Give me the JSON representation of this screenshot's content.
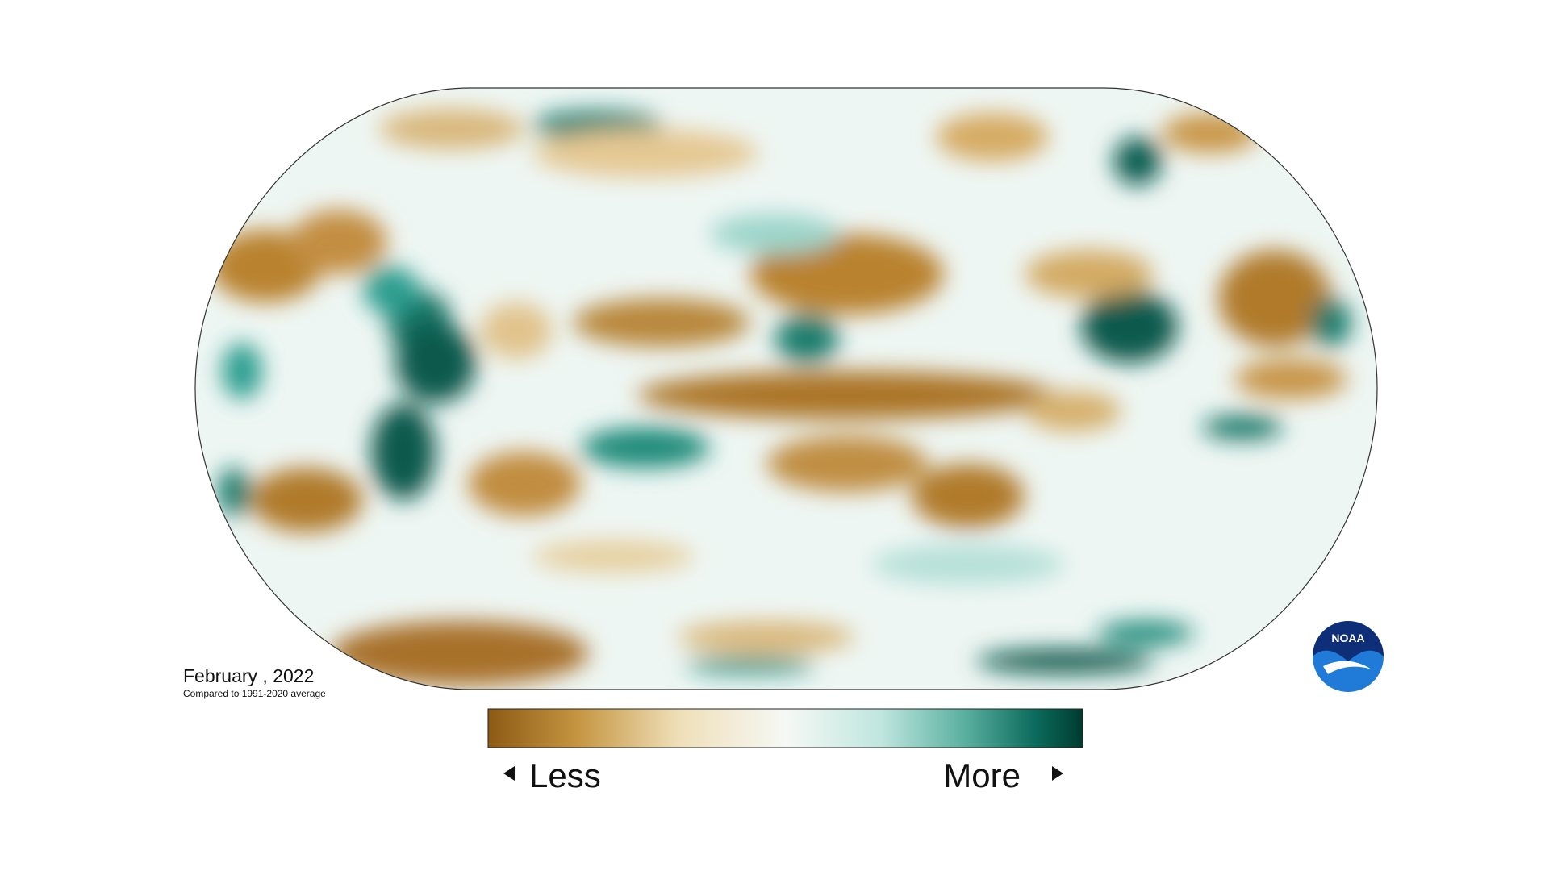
{
  "map": {
    "date": "February , 2022",
    "baseline": "Compared to 1991-2020 average"
  },
  "legend": {
    "low": "Less",
    "high": "More"
  },
  "logo": "NOAA"
}
